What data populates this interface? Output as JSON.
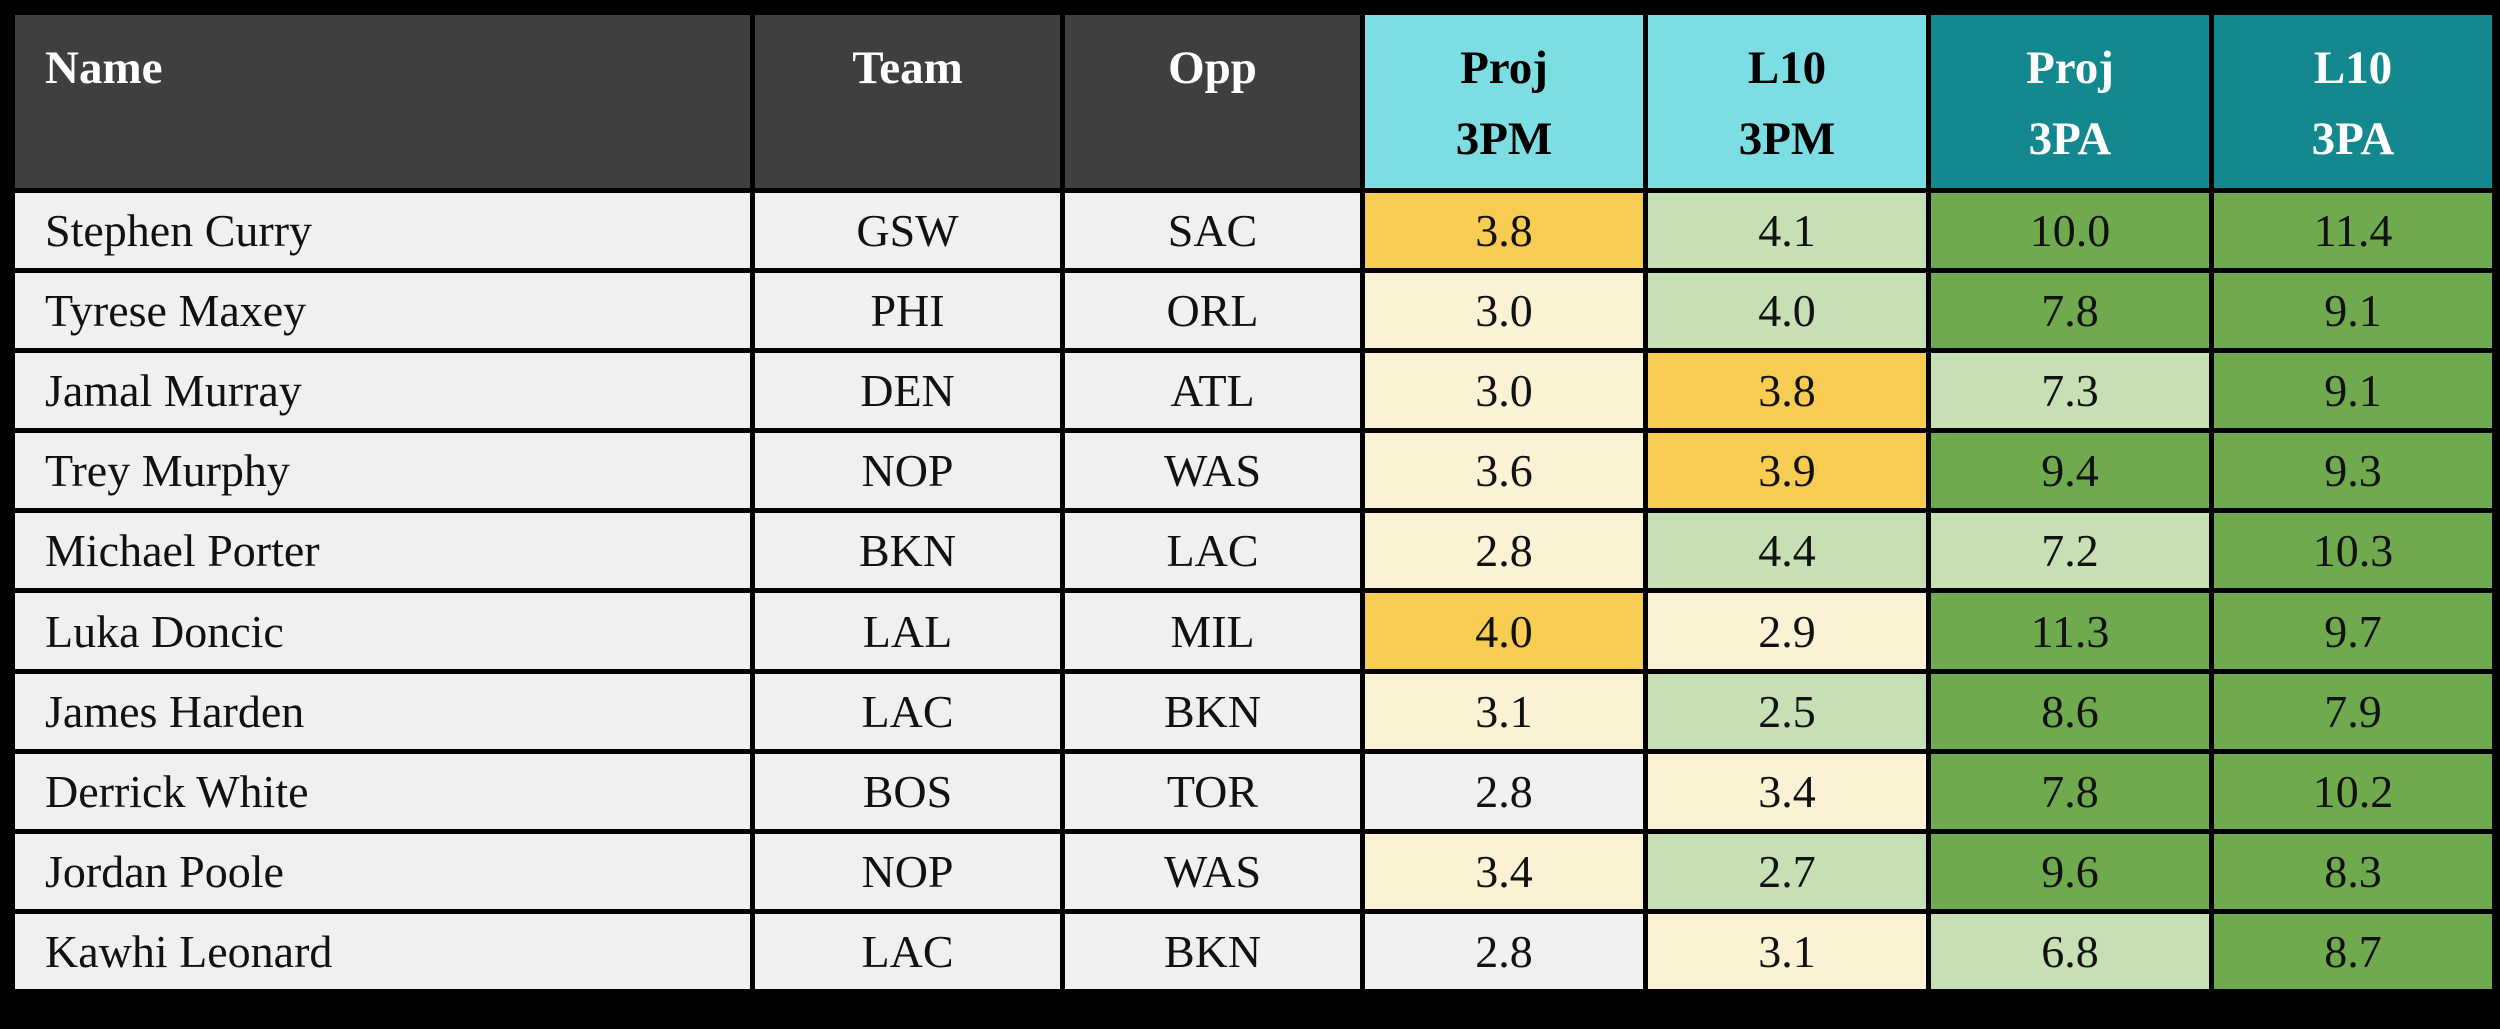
{
  "colors": {
    "header_dark": "#3f3f3f",
    "header_teal_light": "#7cdee2",
    "header_teal_dark": "#13898f",
    "cell_gold": "#f8cc50",
    "cell_cream": "#fbf2d5",
    "cell_light_green": "#c6e0b4",
    "cell_green": "#6faa4e",
    "cell_plain": "#f0f0f0",
    "grid": "#000000"
  },
  "chart_data": {
    "type": "table",
    "columns": [
      {
        "id": "name",
        "line1": "Name",
        "line2": "",
        "style": "dark"
      },
      {
        "id": "team",
        "line1": "Team",
        "line2": "",
        "style": "dark"
      },
      {
        "id": "opp",
        "line1": "Opp",
        "line2": "",
        "style": "dark"
      },
      {
        "id": "proj_3pm",
        "line1": "Proj",
        "line2": "3PM",
        "style": "teal-light"
      },
      {
        "id": "l10_3pm",
        "line1": "L10",
        "line2": "3PM",
        "style": "teal-light"
      },
      {
        "id": "proj_3pa",
        "line1": "Proj",
        "line2": "3PA",
        "style": "teal-dark"
      },
      {
        "id": "l10_3pa",
        "line1": "L10",
        "line2": "3PA",
        "style": "teal-dark"
      }
    ],
    "rows": [
      {
        "name": "Stephen Curry",
        "team": "GSW",
        "opp": "SAC",
        "cells": [
          {
            "value": "3.8",
            "color": "gold"
          },
          {
            "value": "4.1",
            "color": "light_green"
          },
          {
            "value": "10.0",
            "color": "green"
          },
          {
            "value": "11.4",
            "color": "green"
          }
        ]
      },
      {
        "name": "Tyrese Maxey",
        "team": "PHI",
        "opp": "ORL",
        "cells": [
          {
            "value": "3.0",
            "color": "cream"
          },
          {
            "value": "4.0",
            "color": "light_green"
          },
          {
            "value": "7.8",
            "color": "green"
          },
          {
            "value": "9.1",
            "color": "green"
          }
        ]
      },
      {
        "name": "Jamal Murray",
        "team": "DEN",
        "opp": "ATL",
        "cells": [
          {
            "value": "3.0",
            "color": "cream"
          },
          {
            "value": "3.8",
            "color": "gold"
          },
          {
            "value": "7.3",
            "color": "light_green"
          },
          {
            "value": "9.1",
            "color": "green"
          }
        ]
      },
      {
        "name": "Trey Murphy",
        "team": "NOP",
        "opp": "WAS",
        "cells": [
          {
            "value": "3.6",
            "color": "cream"
          },
          {
            "value": "3.9",
            "color": "gold"
          },
          {
            "value": "9.4",
            "color": "green"
          },
          {
            "value": "9.3",
            "color": "green"
          }
        ]
      },
      {
        "name": "Michael Porter",
        "team": "BKN",
        "opp": "LAC",
        "cells": [
          {
            "value": "2.8",
            "color": "cream"
          },
          {
            "value": "4.4",
            "color": "light_green"
          },
          {
            "value": "7.2",
            "color": "light_green"
          },
          {
            "value": "10.3",
            "color": "green"
          }
        ]
      },
      {
        "name": "Luka Doncic",
        "team": "LAL",
        "opp": "MIL",
        "cells": [
          {
            "value": "4.0",
            "color": "gold"
          },
          {
            "value": "2.9",
            "color": "cream"
          },
          {
            "value": "11.3",
            "color": "green"
          },
          {
            "value": "9.7",
            "color": "green"
          }
        ]
      },
      {
        "name": "James Harden",
        "team": "LAC",
        "opp": "BKN",
        "cells": [
          {
            "value": "3.1",
            "color": "cream"
          },
          {
            "value": "2.5",
            "color": "light_green"
          },
          {
            "value": "8.6",
            "color": "green"
          },
          {
            "value": "7.9",
            "color": "green"
          }
        ]
      },
      {
        "name": "Derrick White",
        "team": "BOS",
        "opp": "TOR",
        "cells": [
          {
            "value": "2.8",
            "color": "plain"
          },
          {
            "value": "3.4",
            "color": "cream"
          },
          {
            "value": "7.8",
            "color": "green"
          },
          {
            "value": "10.2",
            "color": "green"
          }
        ]
      },
      {
        "name": "Jordan Poole",
        "team": "NOP",
        "opp": "WAS",
        "cells": [
          {
            "value": "3.4",
            "color": "cream"
          },
          {
            "value": "2.7",
            "color": "light_green"
          },
          {
            "value": "9.6",
            "color": "green"
          },
          {
            "value": "8.3",
            "color": "green"
          }
        ]
      },
      {
        "name": "Kawhi Leonard",
        "team": "LAC",
        "opp": "BKN",
        "cells": [
          {
            "value": "2.8",
            "color": "plain"
          },
          {
            "value": "3.1",
            "color": "cream"
          },
          {
            "value": "6.8",
            "color": "light_green"
          },
          {
            "value": "8.7",
            "color": "green"
          }
        ]
      }
    ]
  }
}
